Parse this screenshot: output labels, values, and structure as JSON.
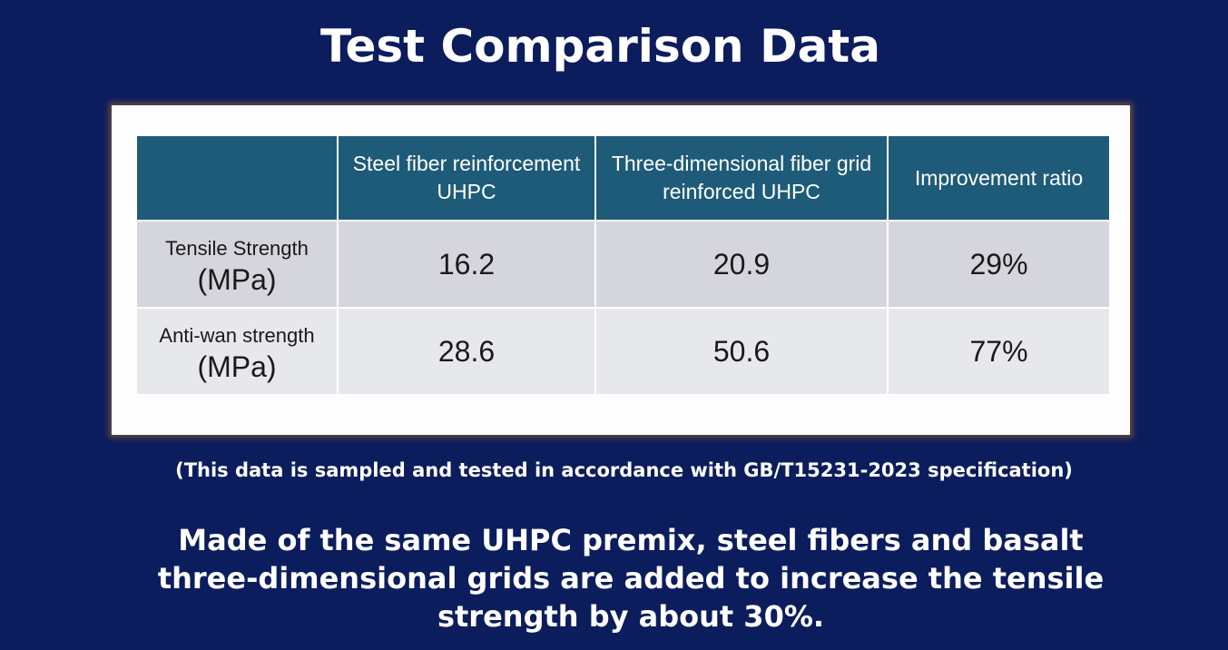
{
  "title": "Test Comparison Data",
  "table": {
    "headers": [
      "",
      "Steel fiber reinforcement UHPC",
      "Three-dimensional fiber grid reinforced UHPC",
      "Improvement ratio"
    ],
    "rows": [
      {
        "label": "Tensile Strength",
        "unit": "(MPa)",
        "steel": "16.2",
        "grid": "20.9",
        "ratio": "29%"
      },
      {
        "label": "Anti-wan strength",
        "unit": "(MPa)",
        "steel": "28.6",
        "grid": "50.6",
        "ratio": "77%"
      }
    ]
  },
  "note": "(This data is sampled and tested in accordance with GB/T15231-2023 specification)",
  "description": "Made of the same UHPC premix, steel fibers and basalt three-dimensional grids are added to increase the tensile strength by about 30%."
}
